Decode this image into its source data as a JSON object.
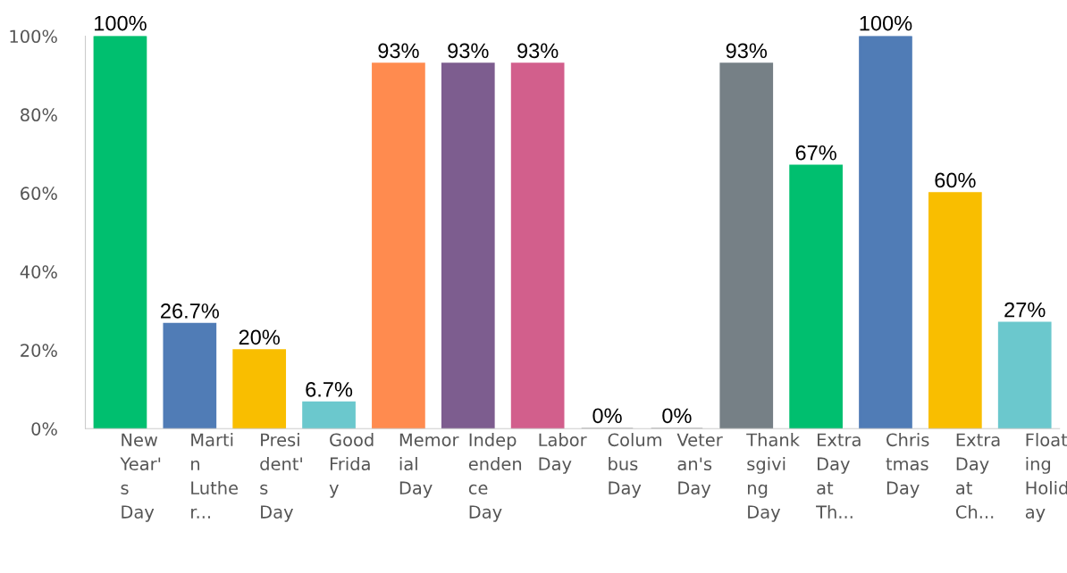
{
  "chart_data": {
    "type": "bar",
    "categories": [
      "New\nYear'\ns\nDay",
      "Marti\nn\nLuthe\nr...",
      "Presi\ndent'\ns\nDay",
      "Good\nFrida\ny",
      "Memor\nial\nDay",
      "Indep\nenden\nce\nDay",
      "Labor\nDay",
      "Colum\nbus\nDay",
      "Veter\nan's\nDay",
      "Thank\nsgivi\nng\nDay",
      "Extra\nDay\nat\nTh...",
      "Chris\ntmas\nDay",
      "Extra\nDay\nat\nCh...",
      "Float\ning\nHolid\nay"
    ],
    "values": [
      100,
      26.7,
      20,
      6.7,
      93,
      93,
      93,
      0,
      0,
      93,
      67,
      100,
      60,
      27
    ],
    "value_labels": [
      "100%",
      "26.7%",
      "20%",
      "6.7%",
      "93%",
      "93%",
      "93%",
      "0%",
      "0%",
      "93%",
      "67%",
      "100%",
      "60%",
      "27%"
    ],
    "colors": [
      "#00bf6f",
      "#507cb6",
      "#f9be00",
      "#6bc8cd",
      "#ff8b4f",
      "#7d5d8f",
      "#d25f8c",
      "#b0b0b0",
      "#b0b0b0",
      "#768086",
      "#00bf6f",
      "#507cb6",
      "#f9be00",
      "#6bc8cd"
    ],
    "ylim": [
      0,
      100
    ],
    "yticks": [
      {
        "value": 0,
        "label": "0%"
      },
      {
        "value": 20,
        "label": "20%"
      },
      {
        "value": 40,
        "label": "40%"
      },
      {
        "value": 60,
        "label": "60%"
      },
      {
        "value": 80,
        "label": "80%"
      },
      {
        "value": 100,
        "label": "100%"
      }
    ],
    "grid": false,
    "legend": false
  }
}
